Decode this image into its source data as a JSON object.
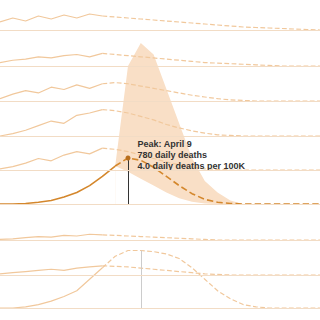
{
  "chart_data": [
    {
      "type": "line",
      "xlim": [
        0,
        100
      ],
      "ylim": [
        0,
        3
      ],
      "tick_labels": false,
      "grid": false,
      "x": [
        0,
        4,
        8,
        12,
        16,
        20,
        24,
        28,
        32,
        36,
        40,
        44,
        48,
        52,
        56,
        60,
        64,
        68,
        72,
        76,
        80,
        84,
        88,
        92,
        96,
        100
      ],
      "series": [
        {
          "color": "#f1c89c",
          "line_style": "solid",
          "values": [
            0.8,
            1.2,
            0.9,
            1.4,
            1.1,
            1.5,
            1.2,
            1.6,
            1.4,
            null,
            null,
            null,
            null,
            null,
            null,
            null,
            null,
            null,
            null,
            null,
            null,
            null,
            null,
            null,
            null,
            null
          ]
        },
        {
          "color": "#f1c89c",
          "line_style": "dashed",
          "values": [
            null,
            null,
            null,
            null,
            null,
            null,
            null,
            null,
            1.4,
            1.3,
            1.2,
            1.1,
            1.0,
            0.9,
            0.8,
            0.7,
            0.6,
            0.5,
            0.4,
            0.3,
            0.25,
            0.2,
            0.15,
            0.1,
            0.05,
            0
          ]
        }
      ]
    },
    {
      "type": "line",
      "xlim": [
        0,
        100
      ],
      "ylim": [
        0,
        3
      ],
      "tick_labels": false,
      "grid": false,
      "x": [
        0,
        4,
        8,
        12,
        16,
        20,
        24,
        28,
        32,
        36,
        40,
        44,
        48,
        52,
        56,
        60,
        64,
        68,
        72,
        76,
        80,
        84,
        88,
        92,
        96,
        100
      ],
      "series": [
        {
          "color": "#f1c89c",
          "line_style": "solid",
          "values": [
            0.3,
            0.5,
            0.6,
            0.8,
            0.7,
            0.9,
            1.0,
            0.8,
            1.1,
            null,
            null,
            null,
            null,
            null,
            null,
            null,
            null,
            null,
            null,
            null,
            null,
            null,
            null,
            null,
            null,
            null
          ]
        },
        {
          "color": "#f1c89c",
          "line_style": "dashed",
          "values": [
            null,
            null,
            null,
            null,
            null,
            null,
            null,
            null,
            1.1,
            1.0,
            0.9,
            0.8,
            0.7,
            0.6,
            0.5,
            0.4,
            0.3,
            0.25,
            0.2,
            0.15,
            0.1,
            0.05,
            0,
            0,
            0,
            0
          ]
        }
      ]
    },
    {
      "type": "line",
      "xlim": [
        0,
        100
      ],
      "ylim": [
        0,
        3
      ],
      "tick_labels": false,
      "grid": false,
      "x": [
        0,
        4,
        8,
        12,
        16,
        20,
        24,
        28,
        32,
        36,
        40,
        44,
        48,
        52,
        56,
        60,
        64,
        68,
        72,
        76,
        80,
        84,
        88,
        92,
        96,
        100
      ],
      "series": [
        {
          "color": "#f1c89c",
          "line_style": "solid",
          "values": [
            0.2,
            0.6,
            0.9,
            0.7,
            1.2,
            1.0,
            1.4,
            1.1,
            1.5,
            null,
            null,
            null,
            null,
            null,
            null,
            null,
            null,
            null,
            null,
            null,
            null,
            null,
            null,
            null,
            null,
            null
          ]
        },
        {
          "color": "#f1c89c",
          "line_style": "dashed",
          "values": [
            null,
            null,
            null,
            null,
            null,
            null,
            null,
            null,
            1.5,
            1.6,
            1.5,
            1.3,
            1.1,
            0.9,
            0.7,
            0.5,
            0.35,
            0.2,
            0.1,
            0.05,
            0,
            0,
            0,
            0,
            0,
            0
          ]
        }
      ]
    },
    {
      "type": "line",
      "xlim": [
        0,
        100
      ],
      "ylim": [
        0,
        3
      ],
      "tick_labels": false,
      "grid": false,
      "x": [
        0,
        4,
        8,
        12,
        16,
        20,
        24,
        28,
        32,
        36,
        40,
        44,
        48,
        52,
        56,
        60,
        64,
        68,
        72,
        76,
        80,
        84,
        88,
        92,
        96,
        100
      ],
      "series": [
        {
          "color": "#f1c89c",
          "line_style": "solid",
          "values": [
            0,
            0.2,
            0.5,
            0.9,
            1.3,
            1.1,
            1.8,
            2.0,
            2.3,
            null,
            null,
            null,
            null,
            null,
            null,
            null,
            null,
            null,
            null,
            null,
            null,
            null,
            null,
            null,
            null,
            null
          ]
        },
        {
          "color": "#f1c89c",
          "line_style": "dashed",
          "values": [
            null,
            null,
            null,
            null,
            null,
            null,
            null,
            null,
            2.3,
            2.2,
            2.0,
            1.7,
            1.4,
            1.0,
            0.7,
            0.45,
            0.25,
            0.1,
            0.05,
            0,
            0,
            0,
            0,
            0,
            0,
            0
          ]
        }
      ]
    },
    {
      "type": "line",
      "xlim": [
        0,
        100
      ],
      "ylim": [
        0,
        3
      ],
      "tick_labels": false,
      "grid": false,
      "x": [
        0,
        4,
        8,
        12,
        16,
        20,
        24,
        28,
        32,
        36,
        40,
        44,
        48,
        52,
        56,
        60,
        64,
        68,
        72,
        76,
        80,
        84,
        88,
        92,
        96,
        100
      ],
      "series": [
        {
          "color": "#f1c89c",
          "line_style": "solid",
          "values": [
            0.1,
            0.3,
            0.6,
            1.0,
            0.8,
            1.3,
            1.6,
            1.4,
            1.9,
            null,
            null,
            null,
            null,
            null,
            null,
            null,
            null,
            null,
            null,
            null,
            null,
            null,
            null,
            null,
            null,
            null
          ]
        },
        {
          "color": "#f1c89c",
          "line_style": "dashed",
          "values": [
            null,
            null,
            null,
            null,
            null,
            null,
            null,
            null,
            1.9,
            1.8,
            1.6,
            1.3,
            1.0,
            0.7,
            0.45,
            0.25,
            0.1,
            0.05,
            0,
            0,
            0,
            0,
            0,
            0,
            0,
            0
          ]
        }
      ]
    },
    {
      "type": "line",
      "xlim": [
        0,
        100
      ],
      "ylim": [
        0,
        15
      ],
      "tick_labels": false,
      "grid": false,
      "x": [
        0,
        4,
        8,
        12,
        16,
        20,
        24,
        28,
        32,
        36,
        40,
        44,
        48,
        52,
        56,
        60,
        64,
        68,
        72,
        76,
        80,
        84,
        88,
        92,
        96,
        100
      ],
      "series": [
        {
          "color": "#d4872c",
          "line_style": "solid",
          "values": [
            0,
            0,
            0.05,
            0.15,
            0.3,
            0.6,
            1.0,
            1.6,
            2.4,
            3.3,
            null,
            null,
            null,
            null,
            null,
            null,
            null,
            null,
            null,
            null,
            null,
            null,
            null,
            null,
            null,
            null
          ]
        },
        {
          "color": "#d4872c",
          "line_style": "dashed",
          "values": [
            null,
            null,
            null,
            null,
            null,
            null,
            null,
            null,
            null,
            3.3,
            4.0,
            3.8,
            3.2,
            2.4,
            1.6,
            0.9,
            0.4,
            0.15,
            0.05,
            0,
            0,
            0,
            0,
            0,
            0,
            0
          ]
        }
      ],
      "band": {
        "color": "#f9dfc6",
        "lower": [
          null,
          null,
          null,
          null,
          null,
          null,
          null,
          null,
          null,
          3.3,
          2.8,
          2.2,
          1.6,
          1.0,
          0.5,
          0.2,
          0.05,
          0,
          0,
          0,
          0,
          0,
          0,
          0,
          0,
          0
        ],
        "upper": [
          null,
          null,
          null,
          null,
          null,
          null,
          null,
          null,
          null,
          3.3,
          12,
          14,
          13,
          10,
          7,
          4,
          2,
          1,
          0.3,
          0,
          0,
          0,
          0,
          0,
          0,
          0
        ]
      },
      "peak": {
        "x": 40,
        "y": 4.0,
        "color": "#b86e1c"
      },
      "annotation": [
        "Peak: April 9",
        "780 daily deaths",
        "4.0 daily deaths per 100K"
      ]
    },
    {
      "type": "line",
      "xlim": [
        0,
        100
      ],
      "ylim": [
        0,
        3
      ],
      "tick_labels": false,
      "grid": false,
      "x": [
        0,
        4,
        8,
        12,
        16,
        20,
        24,
        28,
        32,
        36,
        40,
        44,
        48,
        52,
        56,
        60,
        64,
        68,
        72,
        76,
        80,
        84,
        88,
        92,
        96,
        100
      ],
      "series": [
        {
          "color": "#f1c89c",
          "line_style": "solid",
          "values": [
            0.05,
            0.1,
            0.2,
            0.3,
            0.25,
            0.4,
            0.35,
            0.5,
            0.45,
            null,
            null,
            null,
            null,
            null,
            null,
            null,
            null,
            null,
            null,
            null,
            null,
            null,
            null,
            null,
            null,
            null
          ]
        },
        {
          "color": "#f1c89c",
          "line_style": "dashed",
          "values": [
            null,
            null,
            null,
            null,
            null,
            null,
            null,
            null,
            0.45,
            0.4,
            0.35,
            0.3,
            0.25,
            0.2,
            0.15,
            0.1,
            0.05,
            0,
            0,
            0,
            0,
            0,
            0,
            0,
            0,
            0
          ]
        }
      ]
    },
    {
      "type": "line",
      "xlim": [
        0,
        100
      ],
      "ylim": [
        0,
        3
      ],
      "tick_labels": false,
      "grid": false,
      "x": [
        0,
        4,
        8,
        12,
        16,
        20,
        24,
        28,
        32,
        36,
        40,
        44,
        48,
        52,
        56,
        60,
        64,
        68,
        72,
        76,
        80,
        84,
        88,
        92,
        96,
        100
      ],
      "series": [
        {
          "color": "#f1c89c",
          "line_style": "solid",
          "values": [
            0.1,
            0.2,
            0.3,
            0.4,
            0.5,
            0.4,
            0.6,
            0.7,
            0.8,
            null,
            null,
            null,
            null,
            null,
            null,
            null,
            null,
            null,
            null,
            null,
            null,
            null,
            null,
            null,
            null,
            null
          ]
        },
        {
          "color": "#f1c89c",
          "line_style": "dashed",
          "values": [
            null,
            null,
            null,
            null,
            null,
            null,
            null,
            null,
            0.8,
            0.75,
            0.7,
            0.6,
            0.5,
            0.4,
            0.3,
            0.2,
            0.1,
            0.05,
            0,
            0,
            0,
            0,
            0,
            0,
            0,
            0
          ]
        }
      ]
    },
    {
      "type": "line",
      "xlim": [
        0,
        100
      ],
      "ylim": [
        0,
        6
      ],
      "tick_labels": false,
      "grid": false,
      "x": [
        0,
        4,
        8,
        12,
        16,
        20,
        24,
        28,
        32,
        36,
        40,
        44,
        48,
        52,
        56,
        60,
        64,
        68,
        72,
        76,
        80,
        84,
        88,
        92,
        96,
        100
      ],
      "series": [
        {
          "color": "#f1c89c",
          "line_style": "solid",
          "values": [
            0,
            0,
            0.1,
            0.3,
            0.6,
            1.0,
            1.5,
            2.5,
            3.5,
            null,
            null,
            null,
            null,
            null,
            null,
            null,
            null,
            null,
            null,
            null,
            null,
            null,
            null,
            null,
            null,
            null
          ]
        },
        {
          "color": "#f1c89c",
          "line_style": "dashed",
          "values": [
            null,
            null,
            null,
            null,
            null,
            null,
            null,
            null,
            3.5,
            4.5,
            5.0,
            5.0,
            4.9,
            4.7,
            4.3,
            3.5,
            2.5,
            1.5,
            0.8,
            0.3,
            0.1,
            0,
            0,
            0,
            0,
            0
          ]
        }
      ],
      "peak": {
        "x": 44,
        "y": 5.0,
        "color": "#cccccc"
      }
    }
  ]
}
